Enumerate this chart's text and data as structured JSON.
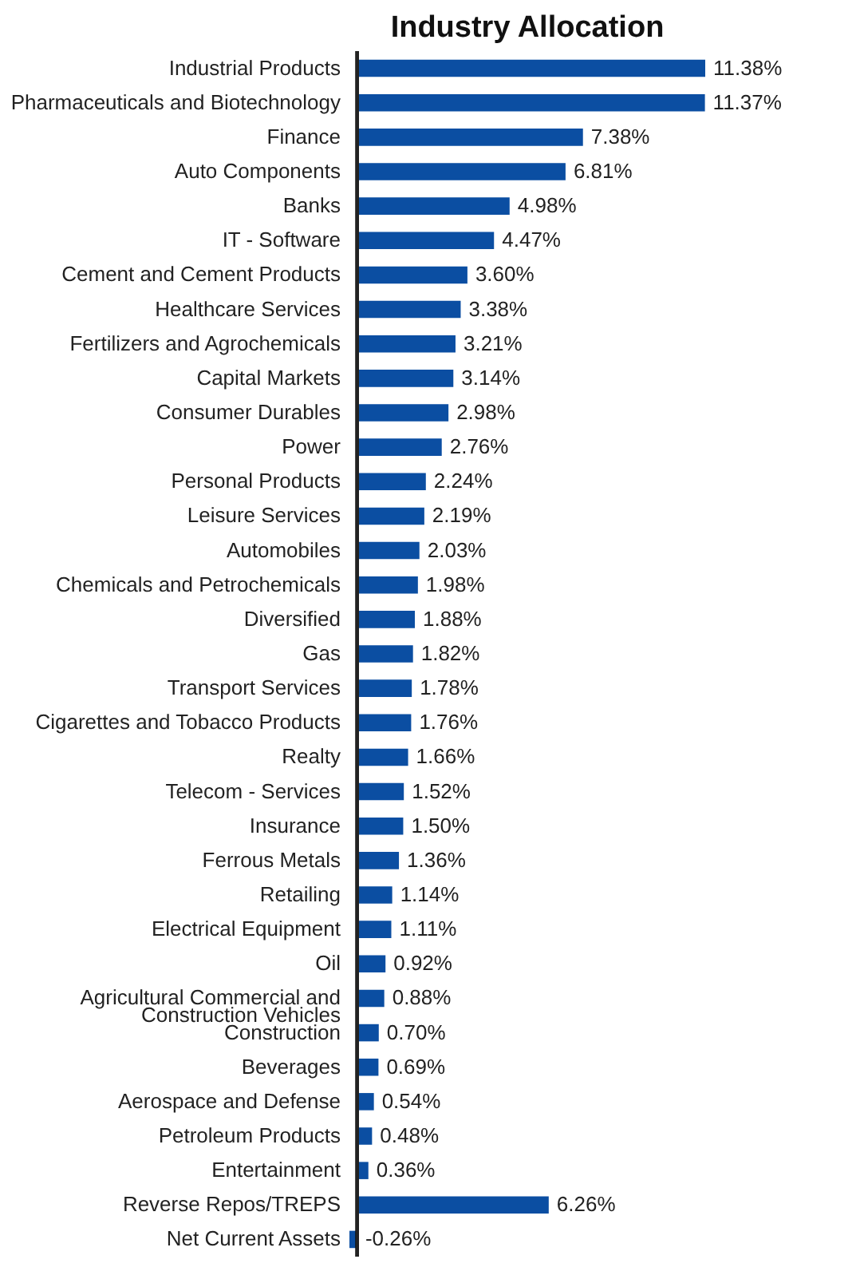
{
  "chart_data": {
    "type": "bar",
    "orientation": "horizontal",
    "title": "Industry Allocation",
    "categories": [
      "Industrial Products",
      "Pharmaceuticals and Biotechnology",
      "Finance",
      "Auto Components",
      "Banks",
      "IT - Software",
      "Cement and Cement Products",
      "Healthcare Services",
      "Fertilizers and Agrochemicals",
      "Capital Markets",
      "Consumer Durables",
      "Power",
      "Personal Products",
      "Leisure Services",
      "Automobiles",
      "Chemicals and Petrochemicals",
      "Diversified",
      "Gas",
      "Transport Services",
      "Cigarettes and Tobacco Products",
      "Realty",
      "Telecom - Services",
      "Insurance",
      "Ferrous Metals",
      "Retailing",
      "Electrical Equipment",
      "Oil",
      "Agricultural Commercial and Construction Vehicles",
      "Construction",
      "Beverages",
      "Aerospace and Defense",
      "Petroleum Products",
      "Entertainment",
      "Reverse Repos/TREPS",
      "Net Current Assets"
    ],
    "values": [
      11.38,
      11.37,
      7.38,
      6.81,
      4.98,
      4.47,
      3.6,
      3.38,
      3.21,
      3.14,
      2.98,
      2.76,
      2.24,
      2.19,
      2.03,
      1.98,
      1.88,
      1.82,
      1.78,
      1.76,
      1.66,
      1.52,
      1.5,
      1.36,
      1.14,
      1.11,
      0.92,
      0.88,
      0.7,
      0.69,
      0.54,
      0.48,
      0.36,
      6.26,
      -0.26
    ],
    "value_labels": [
      "11.38%",
      "11.37%",
      "7.38%",
      "6.81%",
      "4.98%",
      "4.47%",
      "3.60%",
      "3.38%",
      "3.21%",
      "3.14%",
      "2.98%",
      "2.76%",
      "2.24%",
      "2.19%",
      "2.03%",
      "1.98%",
      "1.88%",
      "1.82%",
      "1.78%",
      "1.76%",
      "1.66%",
      "1.52%",
      "1.50%",
      "1.36%",
      "1.14%",
      "1.11%",
      "0.92%",
      "0.88%",
      "0.70%",
      "0.69%",
      "0.54%",
      "0.48%",
      "0.36%",
      "6.26%",
      "-0.26%"
    ],
    "color": "#0b4ea2"
  }
}
